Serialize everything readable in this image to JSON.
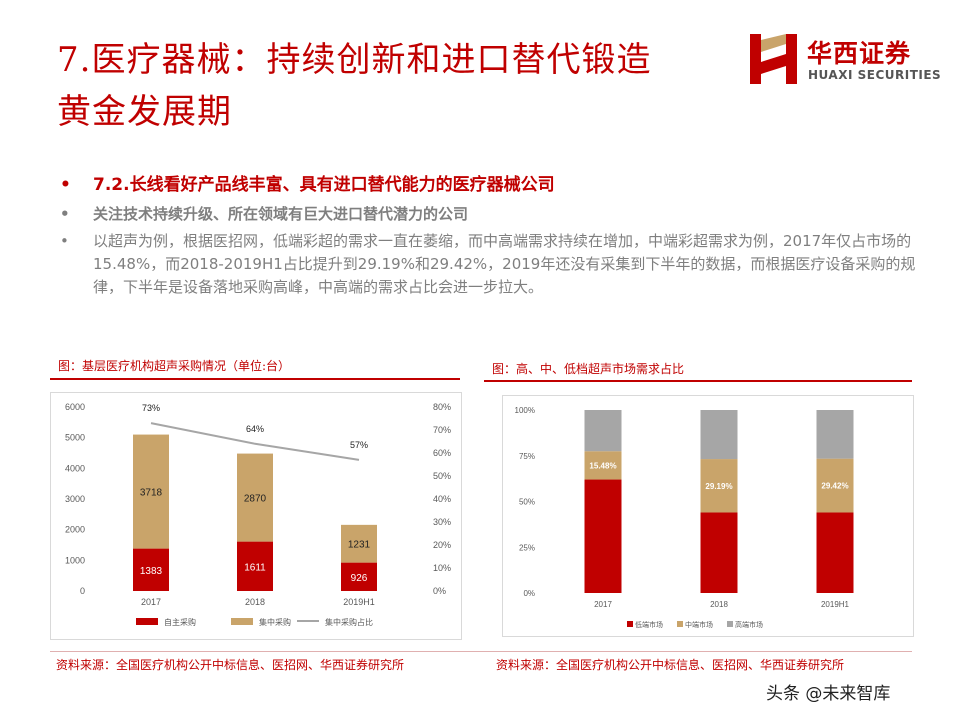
{
  "title": {
    "line1": "7.医疗器械：持续创新和进口替代锻造",
    "line2": "黄金发展期"
  },
  "logo": {
    "cn": "华西证券",
    "en": "HUAXI SECURITIES",
    "color": "#c00000"
  },
  "bullets": [
    {
      "symbol": "•",
      "text": "7.2.长线看好产品线丰富、具有进口替代能力的医疗器械公司"
    },
    {
      "symbol": "•",
      "text": "关注技术持续升级、所在领域有巨大进口替代潜力的公司"
    },
    {
      "symbol": "•",
      "text": "以超声为例，根据医招网，低端彩超的需求一直在萎缩，而中高端需求持续在增加，中端彩超需求为例，2017年仅占市场的15.48%，而2018-2019H1占比提升到29.19%和29.42%，2019年还没有采集到下半年的数据，而根据医疗设备采购的规律，下半年是设备落地采购高峰，中高端的需求占比会进一步拉大。"
    }
  ],
  "chart1": {
    "caption": "图：基层医疗机构超声采购情况（单位:台）",
    "source": "资料来源：全国医疗机构公开中标信息、医招网、华西证券研究所"
  },
  "chart2": {
    "caption": "图：高、中、低档超声市场需求占比",
    "source": "资料来源：全国医疗机构公开中标信息、医招网、华西证券研究所"
  },
  "watermark": "头条 @未来智库",
  "chart_data": [
    {
      "type": "bar",
      "stacked": true,
      "categories": [
        "2017",
        "2018",
        "2019H1"
      ],
      "series": [
        {
          "name": "自主采购",
          "values": [
            1383,
            1611,
            926
          ],
          "color": "#c00000",
          "labels": [
            "1383",
            "1611",
            "926"
          ]
        },
        {
          "name": "集中采购",
          "values": [
            3718,
            2870,
            1231
          ],
          "color": "#c9a46a",
          "labels": [
            "3718",
            "2870",
            "1231"
          ]
        }
      ],
      "line_series": {
        "name": "集中采购占比",
        "values": [
          0.73,
          0.64,
          0.57
        ],
        "labels": [
          "73%",
          "64%",
          "57%"
        ],
        "color": "#a6a6a6"
      },
      "y_left": {
        "range": [
          0,
          6000
        ],
        "ticks": [
          "0",
          "1000",
          "2000",
          "3000",
          "4000",
          "5000",
          "6000"
        ]
      },
      "y_right": {
        "range": [
          0,
          0.8
        ],
        "ticks": [
          "0%",
          "10%",
          "20%",
          "30%",
          "40%",
          "50%",
          "60%",
          "70%",
          "80%"
        ]
      },
      "legend": "bottom"
    },
    {
      "type": "bar",
      "stacked": true,
      "percent": true,
      "categories": [
        "2017",
        "2018",
        "2019H1"
      ],
      "series": [
        {
          "name": "低端市场",
          "values": [
            0.62,
            0.44,
            0.44
          ],
          "color": "#c00000"
        },
        {
          "name": "中端市场",
          "values": [
            0.1548,
            0.2919,
            0.2942
          ],
          "color": "#c9a46a",
          "labels": [
            "15.48%",
            "29.19%",
            "29.42%"
          ]
        },
        {
          "name": "高端市场",
          "values": [
            0.2252,
            0.2681,
            0.2658
          ],
          "color": "#a6a6a6"
        }
      ],
      "y": {
        "range": [
          0,
          1
        ],
        "ticks": [
          "0%",
          "25%",
          "50%",
          "75%",
          "100%"
        ]
      },
      "legend": "bottom"
    }
  ]
}
